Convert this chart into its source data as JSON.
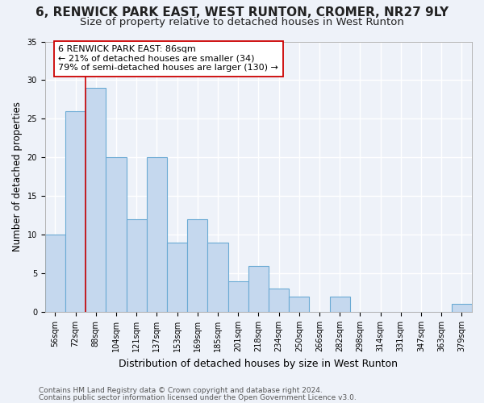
{
  "title1": "6, RENWICK PARK EAST, WEST RUNTON, CROMER, NR27 9LY",
  "title2": "Size of property relative to detached houses in West Runton",
  "xlabel": "Distribution of detached houses by size in West Runton",
  "ylabel": "Number of detached properties",
  "categories": [
    "56sqm",
    "72sqm",
    "88sqm",
    "104sqm",
    "121sqm",
    "137sqm",
    "153sqm",
    "169sqm",
    "185sqm",
    "201sqm",
    "218sqm",
    "234sqm",
    "250sqm",
    "266sqm",
    "282sqm",
    "298sqm",
    "314sqm",
    "331sqm",
    "347sqm",
    "363sqm",
    "379sqm"
  ],
  "values": [
    10,
    26,
    29,
    20,
    12,
    20,
    9,
    12,
    9,
    4,
    6,
    3,
    2,
    0,
    2,
    0,
    0,
    0,
    0,
    0,
    1
  ],
  "bar_color": "#c5d8ee",
  "bar_edgecolor": "#6aaad4",
  "vline_color": "#cc0000",
  "vline_x_index": 2,
  "annotation_line1": "6 RENWICK PARK EAST: 86sqm",
  "annotation_line2": "← 21% of detached houses are smaller (34)",
  "annotation_line3": "79% of semi-detached houses are larger (130) →",
  "annotation_box_edgecolor": "#cc0000",
  "ylim": [
    0,
    35
  ],
  "yticks": [
    0,
    5,
    10,
    15,
    20,
    25,
    30,
    35
  ],
  "footer1": "Contains HM Land Registry data © Crown copyright and database right 2024.",
  "footer2": "Contains public sector information licensed under the Open Government Licence v3.0.",
  "bg_color": "#eef2f9",
  "grid_color": "#ffffff",
  "title1_fontsize": 11,
  "title2_fontsize": 9.5,
  "ylabel_fontsize": 8.5,
  "xlabel_fontsize": 9,
  "tick_fontsize": 7,
  "annotation_fontsize": 8,
  "footer_fontsize": 6.5
}
